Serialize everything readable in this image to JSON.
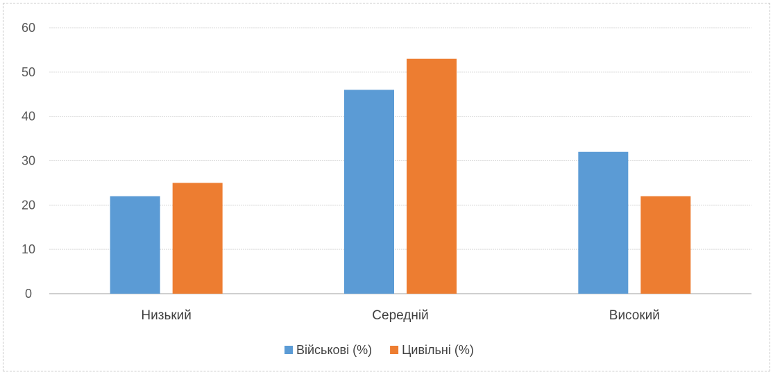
{
  "chart_data": {
    "type": "bar",
    "categories": [
      "Низький",
      "Середній",
      "Високий"
    ],
    "series": [
      {
        "name": "Військові (%)",
        "values": [
          22,
          46,
          32
        ],
        "color": "#5b9bd5"
      },
      {
        "name": "Цивільні (%)",
        "values": [
          25,
          53,
          22
        ],
        "color": "#ed7d31"
      }
    ],
    "yticks": [
      "0",
      "10",
      "20",
      "30",
      "40",
      "50",
      "60"
    ],
    "ylim": [
      0,
      60
    ],
    "grid": true,
    "legend_position": "bottom"
  }
}
